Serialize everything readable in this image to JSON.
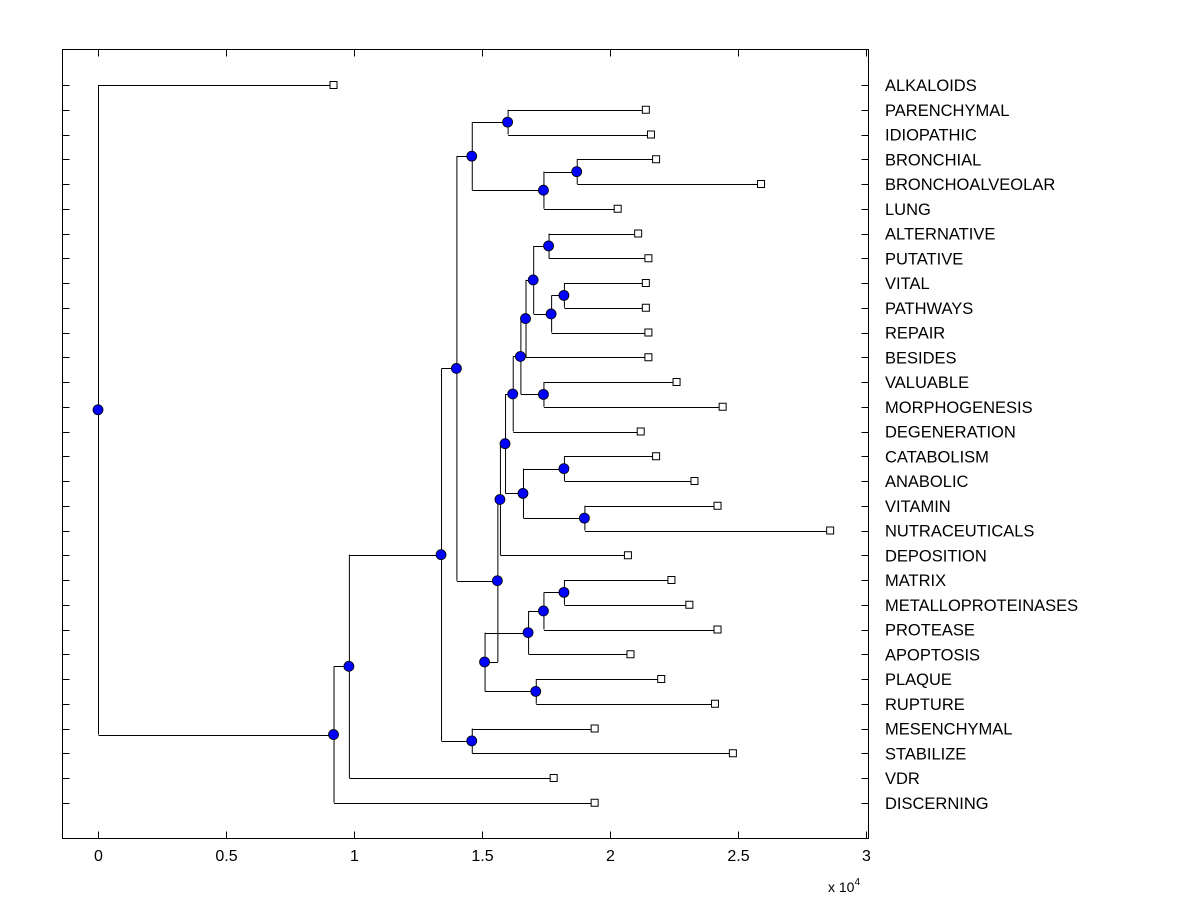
{
  "chart_data": {
    "type": "dendrogram",
    "orientation": "horizontal",
    "x_multiplier_label": {
      "base": "x 10",
      "exponent": "4"
    },
    "xlim": [
      -0.14,
      3.0
    ],
    "x_ticks": [
      {
        "value": 0,
        "label": "0"
      },
      {
        "value": 0.5,
        "label": "0.5"
      },
      {
        "value": 1,
        "label": "1"
      },
      {
        "value": 1.5,
        "label": "1.5"
      },
      {
        "value": 2,
        "label": "2"
      },
      {
        "value": 2.5,
        "label": "2.5"
      },
      {
        "value": 3,
        "label": "3"
      }
    ],
    "leaves": [
      {
        "label": "ALKALOIDS",
        "x": 0.92
      },
      {
        "label": "PARENCHYMAL",
        "x": 2.14
      },
      {
        "label": "IDIOPATHIC",
        "x": 2.16
      },
      {
        "label": "BRONCHIAL",
        "x": 2.18
      },
      {
        "label": "BRONCHOALVEOLAR",
        "x": 2.59
      },
      {
        "label": "LUNG",
        "x": 2.03
      },
      {
        "label": "ALTERNATIVE",
        "x": 2.11
      },
      {
        "label": "PUTATIVE",
        "x": 2.15
      },
      {
        "label": "VITAL",
        "x": 2.14
      },
      {
        "label": "PATHWAYS",
        "x": 2.14
      },
      {
        "label": "REPAIR",
        "x": 2.15
      },
      {
        "label": "BESIDES",
        "x": 2.15
      },
      {
        "label": "VALUABLE",
        "x": 2.26
      },
      {
        "label": "MORPHOGENESIS",
        "x": 2.44
      },
      {
        "label": "DEGENERATION",
        "x": 2.12
      },
      {
        "label": "CATABOLISM",
        "x": 2.18
      },
      {
        "label": "ANABOLIC",
        "x": 2.33
      },
      {
        "label": "VITAMIN",
        "x": 2.42
      },
      {
        "label": "NUTRACEUTICALS",
        "x": 2.86
      },
      {
        "label": "DEPOSITION",
        "x": 2.07
      },
      {
        "label": "MATRIX",
        "x": 2.24
      },
      {
        "label": "METALLOPROTEINASES",
        "x": 2.31
      },
      {
        "label": "PROTEASE",
        "x": 2.42
      },
      {
        "label": "APOPTOSIS",
        "x": 2.08
      },
      {
        "label": "PLAQUE",
        "x": 2.2
      },
      {
        "label": "RUPTURE",
        "x": 2.41
      },
      {
        "label": "MESENCHYMAL",
        "x": 1.94
      },
      {
        "label": "STABILIZE",
        "x": 2.48
      },
      {
        "label": "VDR",
        "x": 1.78
      },
      {
        "label": "DISCERNING",
        "x": 1.94
      }
    ],
    "nodes": [
      {
        "id": "n_par_idi",
        "x": 1.6,
        "children": [
          "L1",
          "L2"
        ]
      },
      {
        "id": "n_bro_bal",
        "x": 1.87,
        "children": [
          "L3",
          "L4"
        ]
      },
      {
        "id": "n_bro_lung",
        "x": 1.74,
        "children": [
          "n_bro_bal",
          "L5"
        ]
      },
      {
        "id": "n_top_resp",
        "x": 1.46,
        "children": [
          "n_par_idi",
          "n_bro_lung"
        ]
      },
      {
        "id": "n_alt_put",
        "x": 1.76,
        "children": [
          "L6",
          "L7"
        ]
      },
      {
        "id": "n_vit_path",
        "x": 1.82,
        "children": [
          "L8",
          "L9"
        ]
      },
      {
        "id": "n_vp_rep",
        "x": 1.77,
        "children": [
          "n_vit_path",
          "L10"
        ]
      },
      {
        "id": "n_ap_vpr",
        "x": 1.7,
        "children": [
          "n_alt_put",
          "n_vp_rep"
        ]
      },
      {
        "id": "n_with_bes",
        "x": 1.67,
        "children": [
          "n_ap_vpr",
          "L11"
        ]
      },
      {
        "id": "n_val_mor",
        "x": 1.74,
        "children": [
          "L12",
          "L13"
        ]
      },
      {
        "id": "n_with_vm",
        "x": 1.65,
        "children": [
          "n_with_bes",
          "n_val_mor"
        ]
      },
      {
        "id": "n_with_deg",
        "x": 1.62,
        "children": [
          "n_with_vm",
          "L14"
        ]
      },
      {
        "id": "n_cat_ana",
        "x": 1.82,
        "children": [
          "L15",
          "L16"
        ]
      },
      {
        "id": "n_vit_nut",
        "x": 1.9,
        "children": [
          "L17",
          "L18"
        ]
      },
      {
        "id": "n_metab",
        "x": 1.66,
        "children": [
          "n_cat_ana",
          "n_vit_nut"
        ]
      },
      {
        "id": "n_big_a",
        "x": 1.59,
        "children": [
          "n_with_deg",
          "n_metab"
        ]
      },
      {
        "id": "n_with_dep",
        "x": 1.57,
        "children": [
          "n_big_a",
          "L19"
        ]
      },
      {
        "id": "n_mat_met",
        "x": 1.82,
        "children": [
          "L20",
          "L21"
        ]
      },
      {
        "id": "n_mm_prot",
        "x": 1.74,
        "children": [
          "n_mat_met",
          "L22"
        ]
      },
      {
        "id": "n_mmp_apo",
        "x": 1.68,
        "children": [
          "n_mm_prot",
          "L23"
        ]
      },
      {
        "id": "n_pla_rup",
        "x": 1.71,
        "children": [
          "L24",
          "L25"
        ]
      },
      {
        "id": "n_mmp_pr",
        "x": 1.51,
        "children": [
          "n_mmp_apo",
          "n_pla_rup"
        ]
      },
      {
        "id": "n_big_b",
        "x": 1.56,
        "children": [
          "n_with_dep",
          "n_mmp_pr"
        ]
      },
      {
        "id": "n_big_c",
        "x": 1.4,
        "children": [
          "n_top_resp",
          "n_big_b"
        ]
      },
      {
        "id": "n_mes_sta",
        "x": 1.46,
        "children": [
          "L26",
          "L27"
        ]
      },
      {
        "id": "n_big_d",
        "x": 1.34,
        "children": [
          "n_big_c",
          "n_mes_sta"
        ]
      },
      {
        "id": "n_with_vdr",
        "x": 0.98,
        "children": [
          "n_big_d",
          "L28"
        ]
      },
      {
        "id": "n_with_dis",
        "x": 0.92,
        "children": [
          "n_with_vdr",
          "L29"
        ]
      },
      {
        "id": "n_root",
        "x": 0.0,
        "children": [
          "L0",
          "n_with_dis"
        ]
      }
    ],
    "colors": {
      "node_fill": "#0000ff",
      "leaf_fill": "#ffffff",
      "line": "#000000"
    }
  }
}
